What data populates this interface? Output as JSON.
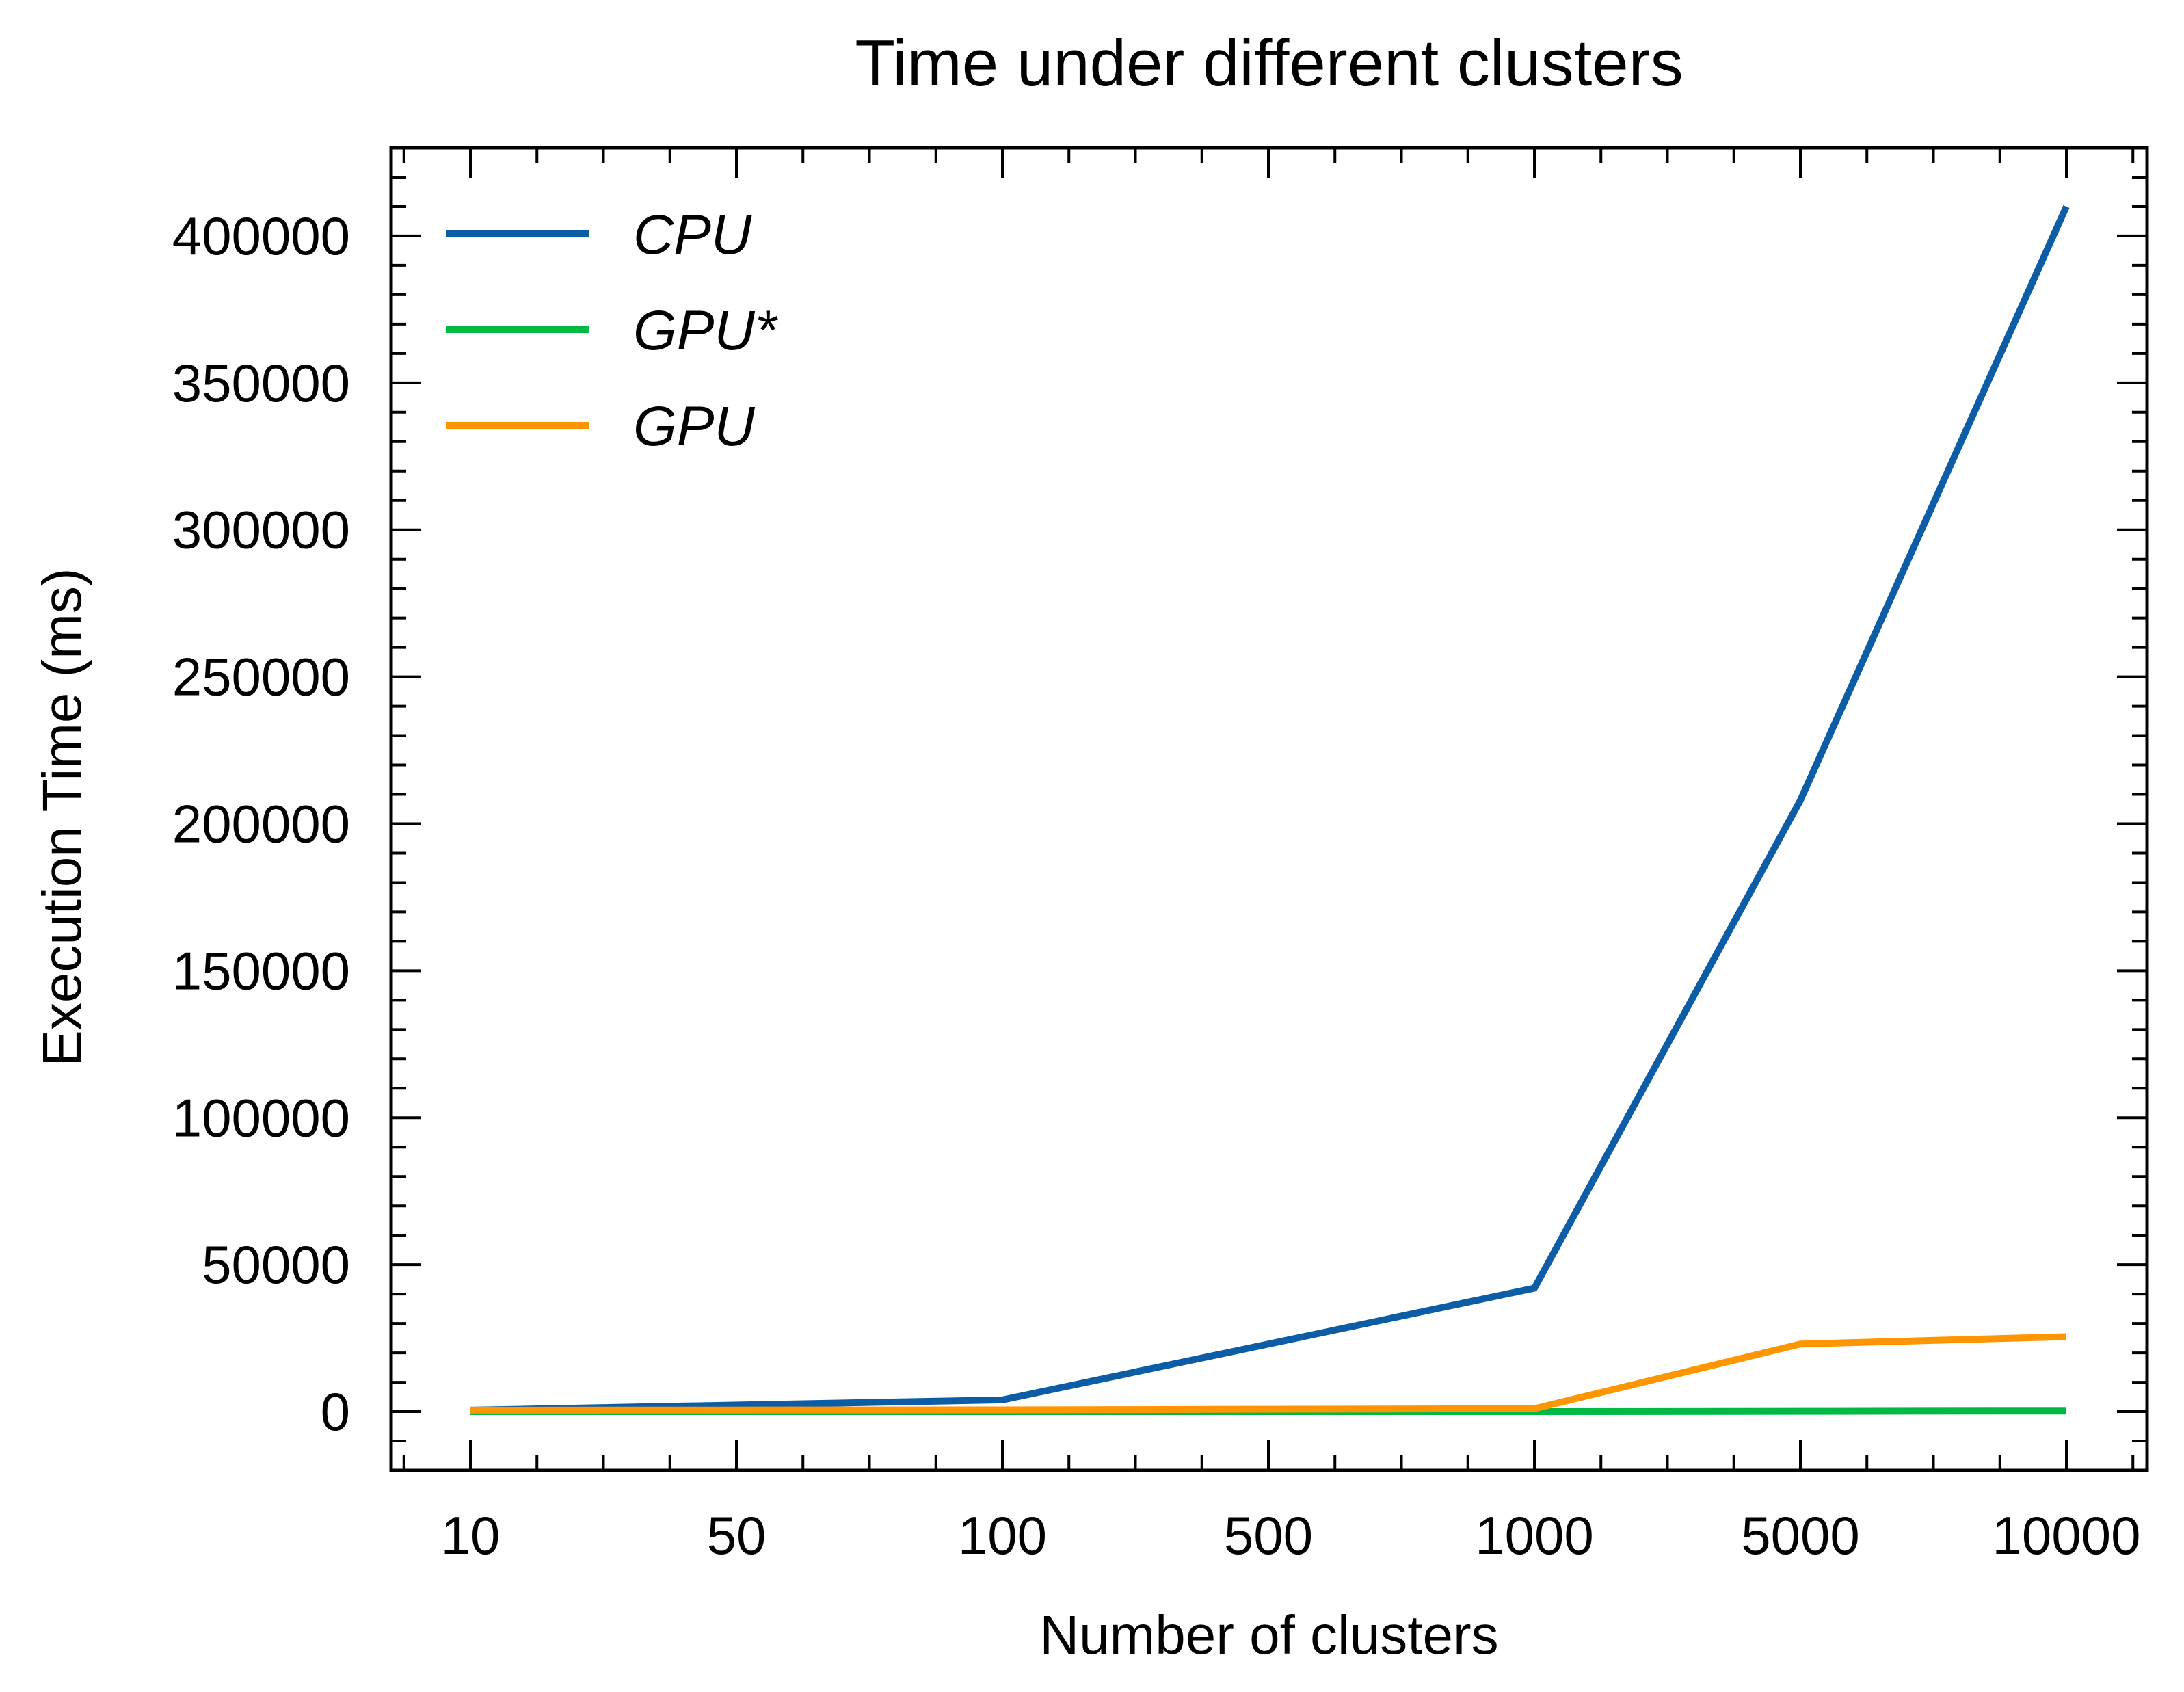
{
  "chart_data": {
    "type": "line",
    "title": "Time under different clusters",
    "xlabel": "Number of clusters",
    "ylabel": "Execution Time (ms)",
    "categories": [
      "10",
      "50",
      "100",
      "500",
      "1000",
      "5000",
      "10000"
    ],
    "ylim": [
      -20000,
      430000
    ],
    "yticks": [
      0,
      50000,
      100000,
      150000,
      200000,
      250000,
      300000,
      350000,
      400000
    ],
    "ytick_labels": [
      "0",
      "50000",
      "100000",
      "150000",
      "200000",
      "250000",
      "300000",
      "350000",
      "400000"
    ],
    "legend_position": "top-left",
    "grid": false,
    "series": [
      {
        "name": "CPU",
        "color": "#0C5DA5",
        "values": [
          500,
          null,
          4000,
          null,
          42000,
          208000,
          410000
        ]
      },
      {
        "name": "GPU*",
        "color": "#00B945",
        "values": [
          0,
          null,
          0,
          null,
          0,
          100,
          200
        ]
      },
      {
        "name": "GPU",
        "color": "#FF9500",
        "values": [
          500,
          null,
          600,
          null,
          1000,
          23000,
          25500
        ]
      }
    ]
  }
}
